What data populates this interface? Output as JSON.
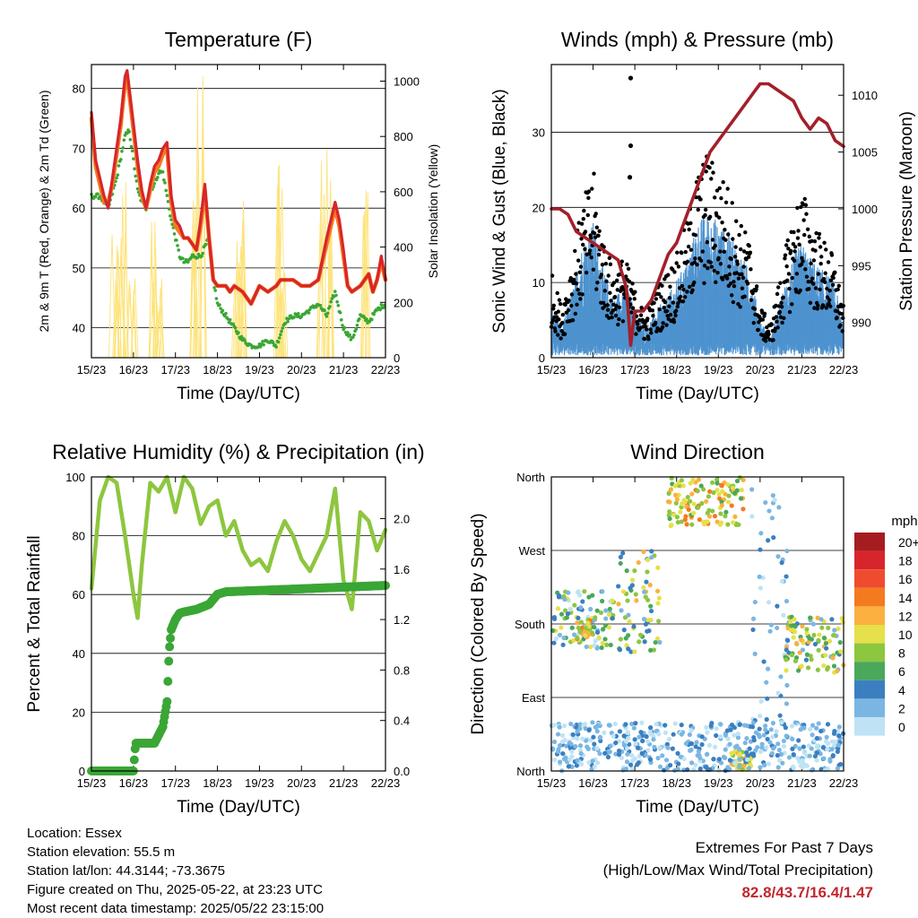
{
  "chart_data": [
    {
      "type": "line",
      "title": "Temperature (F)",
      "xlabel": "Time (Day/UTC)",
      "ylabel": "2m & 9m T (Red, Orange) & 2m Td (Green)",
      "y2label": "Solar Insolation (Yellow)",
      "x_ticks": [
        "15/23",
        "16/23",
        "17/23",
        "18/23",
        "19/23",
        "20/23",
        "21/23",
        "22/23"
      ],
      "xlim": [
        0,
        7
      ],
      "ylim": [
        35,
        84
      ],
      "y_ticks": [
        40,
        50,
        60,
        70,
        80
      ],
      "y2lim": [
        0,
        1060
      ],
      "y2_ticks": [
        0,
        200,
        400,
        600,
        800,
        1000
      ],
      "grid": true,
      "series": [
        {
          "name": "2m T",
          "color": "#d7262b",
          "x": [
            0,
            0.1,
            0.2,
            0.3,
            0.4,
            0.5,
            0.6,
            0.7,
            0.8,
            0.85,
            0.9,
            1.0,
            1.1,
            1.2,
            1.3,
            1.4,
            1.5,
            1.6,
            1.7,
            1.8,
            1.9,
            2.0,
            2.1,
            2.2,
            2.3,
            2.4,
            2.5,
            2.6,
            2.7,
            2.8,
            2.9,
            3.0,
            3.1,
            3.2,
            3.3,
            3.4,
            3.6,
            3.8,
            4.0,
            4.2,
            4.4,
            4.5,
            4.6,
            4.8,
            5.0,
            5.2,
            5.4,
            5.6,
            5.8,
            5.9,
            6.0,
            6.1,
            6.2,
            6.4,
            6.6,
            6.7,
            6.8,
            6.9,
            7.0
          ],
          "y": [
            76,
            68,
            65,
            62,
            60,
            65,
            70,
            75,
            82,
            83,
            80,
            74,
            68,
            63,
            60,
            64,
            67,
            68,
            70,
            71,
            62,
            58,
            57,
            55,
            55,
            54,
            53,
            58,
            64,
            55,
            48,
            47,
            47,
            47,
            46,
            47,
            46,
            44,
            47,
            46,
            47,
            48,
            48,
            48,
            47,
            47,
            48,
            55,
            61,
            58,
            53,
            47,
            46,
            47,
            49,
            46,
            48,
            52,
            48
          ]
        },
        {
          "name": "9m T",
          "color": "#f47a20",
          "x": [
            0,
            0.1,
            0.2,
            0.3,
            0.4,
            0.5,
            0.6,
            0.7,
            0.8,
            0.85,
            0.9,
            1.0,
            1.1,
            1.2,
            1.3,
            1.4,
            1.5,
            1.6,
            1.7,
            1.8,
            1.9,
            2.0,
            2.1,
            2.2,
            2.3,
            2.4,
            2.5,
            2.6,
            2.7,
            2.8,
            2.9,
            3.0,
            3.1,
            3.2,
            3.3,
            3.4,
            3.6,
            3.8,
            4.0,
            4.2,
            4.4,
            4.5,
            4.6,
            4.8,
            5.0,
            5.2,
            5.4,
            5.6,
            5.8,
            5.9,
            6.0,
            6.1,
            6.2,
            6.4,
            6.6,
            6.7,
            6.8,
            6.9,
            7.0
          ],
          "y": [
            75,
            67,
            64,
            61,
            61,
            64,
            69,
            74,
            81,
            82,
            79,
            73,
            67,
            62,
            60,
            63,
            66,
            67,
            69,
            70,
            61,
            57,
            56,
            55,
            55,
            54,
            53,
            57,
            63,
            55,
            48,
            47,
            47,
            47,
            46,
            47,
            46,
            44,
            47,
            46,
            47,
            48,
            48,
            48,
            47,
            47,
            48,
            54,
            60,
            57,
            52,
            47,
            46,
            47,
            49,
            46,
            48,
            51,
            48
          ]
        },
        {
          "name": "2m Td",
          "color": "#3aa635",
          "x": [
            0,
            0.2,
            0.4,
            0.6,
            0.8,
            0.9,
            1.0,
            1.1,
            1.2,
            1.3,
            1.4,
            1.5,
            1.6,
            1.7,
            1.8,
            1.9,
            2.0,
            2.1,
            2.2,
            2.3,
            2.4,
            2.6,
            2.8,
            2.9,
            3.0,
            3.2,
            3.4,
            3.6,
            3.8,
            4.0,
            4.2,
            4.4,
            4.6,
            4.8,
            5.0,
            5.2,
            5.4,
            5.6,
            5.8,
            6.0,
            6.2,
            6.4,
            6.6,
            6.8,
            7.0
          ],
          "y": [
            62,
            62,
            60,
            65,
            72,
            73,
            68,
            63,
            61,
            60,
            63,
            64,
            66,
            66,
            62,
            58,
            55,
            52,
            51,
            51,
            52,
            52,
            55,
            48,
            44,
            42,
            40,
            38,
            37,
            37,
            38,
            37,
            41,
            42,
            42,
            43,
            44,
            42,
            46,
            40,
            38,
            42,
            41,
            43,
            44
          ]
        }
      ]
    },
    {
      "type": "scatter",
      "title": "Winds (mph) & Pressure (mb)",
      "xlabel": "Time (Day/UTC)",
      "ylabel": "Sonic Wind & Gust (Blue, Black)",
      "y2label": "Station Pressure (Maroon)",
      "x_ticks": [
        "15/23",
        "16/23",
        "17/23",
        "18/23",
        "19/23",
        "20/23",
        "21/23",
        "22/23"
      ],
      "xlim": [
        0,
        7
      ],
      "ylim": [
        0,
        39
      ],
      "y_ticks": [
        0,
        10,
        20,
        30
      ],
      "y2lim": [
        986.9,
        1012.7
      ],
      "y2_ticks": [
        990,
        995,
        1000,
        1005,
        1010
      ],
      "grid": true,
      "series": [
        {
          "name": "Station Pressure",
          "color": "#a3202a",
          "x": [
            0,
            0.2,
            0.4,
            0.6,
            0.8,
            1.0,
            1.2,
            1.4,
            1.6,
            1.8,
            1.9,
            2.0,
            2.2,
            2.4,
            2.6,
            2.8,
            3.0,
            3.2,
            3.4,
            3.6,
            3.8,
            4.0,
            4.2,
            4.4,
            4.6,
            4.8,
            5.0,
            5.2,
            5.4,
            5.6,
            5.8,
            6.0,
            6.2,
            6.4,
            6.6,
            6.8,
            7.0
          ],
          "y": [
            1000,
            1000,
            999.5,
            998,
            997.5,
            997,
            996.5,
            996,
            995.5,
            993,
            988,
            991,
            991,
            992,
            994,
            996,
            997,
            999,
            1001,
            1003,
            1005,
            1006,
            1007,
            1008,
            1009,
            1010,
            1011,
            1011,
            1010.5,
            1010,
            1009.5,
            1008,
            1007,
            1008,
            1007.5,
            1006,
            1005.5
          ]
        }
      ],
      "wind_envelope": {
        "x": [
          0,
          0.25,
          0.5,
          0.75,
          1.0,
          1.25,
          1.5,
          1.75,
          2.0,
          2.25,
          2.5,
          2.75,
          3.0,
          3.25,
          3.5,
          3.75,
          4.0,
          4.25,
          4.5,
          4.75,
          5.0,
          5.25,
          5.5,
          5.75,
          6.0,
          6.25,
          6.5,
          6.75,
          7.0
        ],
        "gust": [
          10,
          6,
          12,
          18,
          22,
          14,
          10,
          12,
          8,
          5,
          8,
          10,
          12,
          16,
          22,
          24,
          22,
          20,
          16,
          14,
          6,
          4,
          10,
          16,
          20,
          16,
          14,
          12,
          6
        ],
        "sustained": [
          6,
          3,
          7,
          12,
          14,
          9,
          6,
          8,
          5,
          3,
          5,
          6,
          8,
          10,
          14,
          15,
          14,
          13,
          11,
          9,
          4,
          2,
          6,
          10,
          12,
          10,
          9,
          8,
          4
        ]
      }
    },
    {
      "type": "line",
      "title": "Relative Humidity (%) & Precipitation (in)",
      "xlabel": "Time (Day/UTC)",
      "ylabel": "Percent & Total Rainfall",
      "x_ticks": [
        "15/23",
        "16/23",
        "17/23",
        "18/23",
        "19/23",
        "20/23",
        "21/23",
        "22/23"
      ],
      "xlim": [
        0,
        7
      ],
      "ylim": [
        0,
        100
      ],
      "y_ticks": [
        0,
        20,
        40,
        60,
        80,
        100
      ],
      "y2lim": [
        0,
        2.33
      ],
      "y2_ticks": [
        0.0,
        0.4,
        0.8,
        1.2,
        1.6,
        2.0
      ],
      "grid": true,
      "series": [
        {
          "name": "Relative Humidity",
          "color": "#8dc63f",
          "x": [
            0,
            0.2,
            0.4,
            0.6,
            0.8,
            1.0,
            1.1,
            1.2,
            1.4,
            1.6,
            1.8,
            2.0,
            2.2,
            2.4,
            2.6,
            2.8,
            3.0,
            3.2,
            3.4,
            3.6,
            3.8,
            4.0,
            4.2,
            4.4,
            4.6,
            4.8,
            5.0,
            5.2,
            5.4,
            5.6,
            5.8,
            6.0,
            6.2,
            6.4,
            6.6,
            6.8,
            7.0
          ],
          "y": [
            62,
            92,
            100,
            98,
            80,
            60,
            52,
            70,
            98,
            95,
            100,
            88,
            100,
            96,
            84,
            90,
            92,
            80,
            85,
            75,
            70,
            72,
            68,
            78,
            85,
            80,
            72,
            68,
            74,
            80,
            96,
            65,
            55,
            88,
            85,
            75,
            82
          ]
        },
        {
          "name": "Total Rainfall",
          "color": "#3aa635",
          "x": [
            0,
            1.0,
            1.05,
            1.2,
            1.5,
            1.7,
            1.8,
            1.85,
            1.9,
            2.0,
            2.1,
            2.2,
            2.5,
            2.8,
            3.0,
            3.2,
            7.0
          ],
          "y": [
            0,
            0,
            0.22,
            0.22,
            0.22,
            0.35,
            0.55,
            0.95,
            1.12,
            1.2,
            1.25,
            1.26,
            1.28,
            1.32,
            1.4,
            1.42,
            1.47
          ]
        }
      ]
    },
    {
      "type": "scatter",
      "title": "Wind Direction",
      "xlabel": "Time (Day/UTC)",
      "ylabel": "Direction (Colored By Speed)",
      "x_ticks": [
        "15/23",
        "16/23",
        "17/23",
        "18/23",
        "19/23",
        "20/23",
        "21/23",
        "22/23"
      ],
      "xlim": [
        0,
        7
      ],
      "ylim": [
        0,
        360
      ],
      "y_ticks": [
        "North",
        "East",
        "South",
        "West",
        "North"
      ],
      "grid": true,
      "legend": {
        "title": "mph",
        "labels": [
          "20+",
          "18",
          "16",
          "14",
          "12",
          "10",
          "8",
          "6",
          "4",
          "2",
          "0"
        ],
        "colors": [
          "#a51d21",
          "#d7262b",
          "#ef4b2f",
          "#f47a20",
          "#fbb040",
          "#e6e04a",
          "#8dc63f",
          "#4aa85a",
          "#3b7fc0",
          "#7bb6e2",
          "#bfe3f5"
        ]
      },
      "clusters": [
        {
          "x": [
            0,
            1.5
          ],
          "dir": [
            150,
            220
          ],
          "speed": [
            0,
            10
          ]
        },
        {
          "x": [
            0.6,
            1.0
          ],
          "dir": [
            160,
            185
          ],
          "speed": [
            8,
            14
          ]
        },
        {
          "x": [
            1.6,
            2.6
          ],
          "dir": [
            145,
            270
          ],
          "speed": [
            2,
            12
          ]
        },
        {
          "x": [
            2.8,
            4.6
          ],
          "dir": [
            300,
            360
          ],
          "speed": [
            6,
            14
          ]
        },
        {
          "x": [
            4.3,
            4.8
          ],
          "dir": [
            0,
            25
          ],
          "speed": [
            8,
            12
          ]
        },
        {
          "x": [
            4.8,
            5.7
          ],
          "dir": [
            40,
            360
          ],
          "speed": [
            0,
            4
          ]
        },
        {
          "x": [
            5.6,
            7.0
          ],
          "dir": [
            120,
            190
          ],
          "speed": [
            2,
            12
          ]
        },
        {
          "x": [
            0,
            7.0
          ],
          "dir": [
            0,
            60
          ],
          "speed": [
            0,
            4
          ]
        }
      ]
    }
  ],
  "info": {
    "location": "Location: Essex",
    "elevation": "Station elevation: 55.5 m",
    "latlon": "Station lat/lon: 44.3144; -73.3675",
    "created": "Figure created on Thu, 2025-05-22, at 23:23 UTC",
    "timestamp": "Most recent data timestamp: 2025/05/22 23:15:00"
  },
  "extremes": {
    "title": "Extremes For Past 7 Days",
    "subtitle": "(High/Low/Max Wind/Total Precipitation)",
    "values": "82.8/43.7/16.4/1.47",
    "color": "#c1272d"
  }
}
